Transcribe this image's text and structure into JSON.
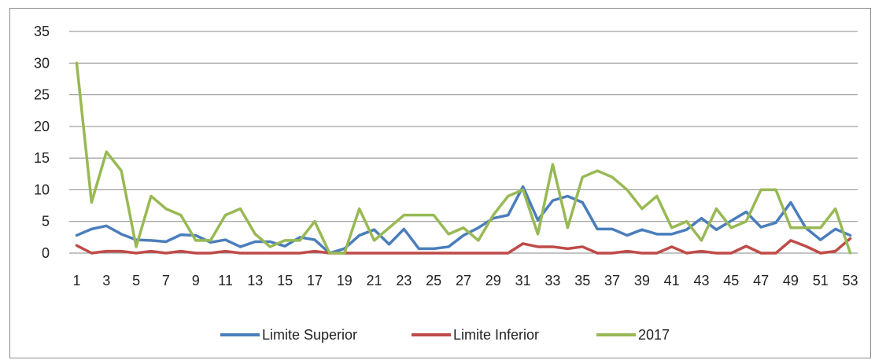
{
  "chart_data": {
    "type": "line",
    "title": "",
    "xlabel": "",
    "ylabel": "",
    "ylim": [
      0,
      35
    ],
    "yticks": [
      0,
      5,
      10,
      15,
      20,
      25,
      30,
      35
    ],
    "x": [
      1,
      2,
      3,
      4,
      5,
      6,
      7,
      8,
      9,
      10,
      11,
      12,
      13,
      14,
      15,
      16,
      17,
      18,
      19,
      20,
      21,
      22,
      23,
      24,
      25,
      26,
      27,
      28,
      29,
      30,
      31,
      32,
      33,
      34,
      35,
      36,
      37,
      38,
      39,
      40,
      41,
      42,
      43,
      44,
      45,
      46,
      47,
      48,
      49,
      50,
      51,
      52,
      53
    ],
    "xtick_labels": [
      "1",
      "3",
      "5",
      "7",
      "9",
      "11",
      "13",
      "15",
      "17",
      "19",
      "21",
      "23",
      "25",
      "27",
      "29",
      "31",
      "33",
      "35",
      "37",
      "39",
      "41",
      "43",
      "45",
      "47",
      "49",
      "51",
      "53"
    ],
    "grid": "horizontal",
    "legend_position": "bottom",
    "series": [
      {
        "name": "Limite Superior",
        "color": "#4a7ebb",
        "values": [
          2.8,
          3.8,
          4.3,
          3,
          2.1,
          2,
          1.8,
          2.9,
          2.8,
          1.7,
          2.1,
          1,
          1.8,
          1.8,
          1.1,
          2.5,
          2.1,
          0,
          0.7,
          2.8,
          3.7,
          1.4,
          3.8,
          0.7,
          0.7,
          1,
          2.8,
          4,
          5.5,
          6,
          10.5,
          5.2,
          8.3,
          9,
          8,
          3.8,
          3.8,
          2.8,
          3.7,
          3,
          3,
          3.7,
          5.5,
          3.7,
          5.1,
          6.5,
          4.1,
          4.8,
          8,
          4,
          2.1,
          3.8,
          2.8
        ]
      },
      {
        "name": "Limite Inferior",
        "color": "#be4b48",
        "values": [
          1.2,
          0,
          0.3,
          0.3,
          0,
          0.3,
          0,
          0.3,
          0,
          0,
          0.3,
          0,
          0,
          0,
          0,
          0,
          0.3,
          0,
          0,
          0,
          0,
          0,
          0,
          0,
          0,
          0,
          0,
          0,
          0,
          0,
          1.5,
          1,
          1,
          0.7,
          1,
          0,
          0,
          0.3,
          0,
          0,
          1,
          0,
          0.3,
          0,
          0,
          1.1,
          0,
          0,
          2,
          1.1,
          0,
          0.3,
          2.3
        ]
      },
      {
        "name": "2017",
        "color": "#98b954",
        "values": [
          30,
          8,
          16,
          13,
          1,
          9,
          7,
          6,
          2,
          2,
          6,
          7,
          3,
          1,
          2,
          2,
          5,
          0,
          0,
          7,
          2,
          4,
          6,
          6,
          6,
          3,
          4,
          2,
          6,
          9,
          10,
          3,
          14,
          4,
          12,
          13,
          12,
          10,
          7,
          9,
          4,
          5,
          2,
          7,
          4,
          5,
          10,
          10,
          4,
          4,
          4,
          7,
          0
        ]
      }
    ]
  }
}
